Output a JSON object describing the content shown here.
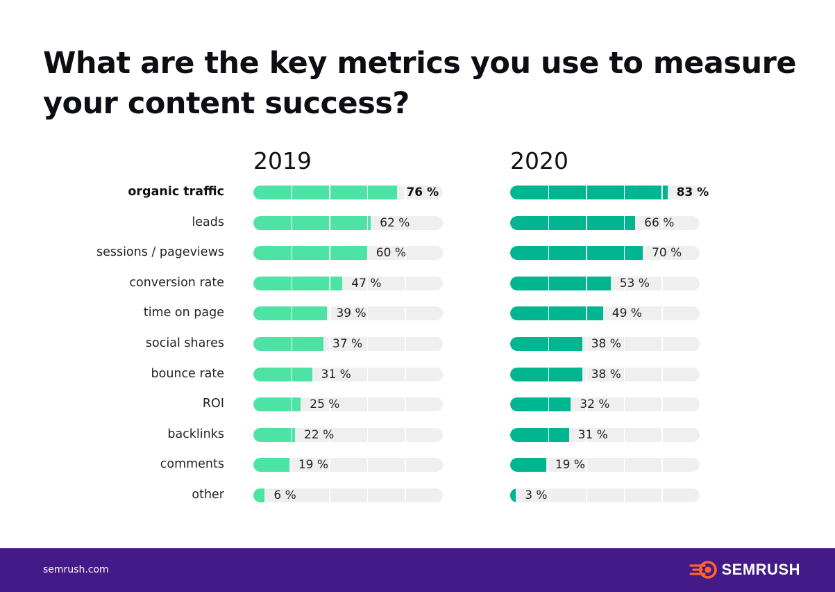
{
  "title": "What are the key metrics you use to measure your content success?",
  "chart_data": {
    "type": "bar",
    "orientation": "horizontal",
    "title": "What are the key metrics you use to measure your content success?",
    "xlim": [
      0,
      100
    ],
    "categories": [
      "organic traffic",
      "leads",
      "sessions / pageviews",
      "conversion rate",
      "time on page",
      "social shares",
      "bounce rate",
      "ROI",
      "backlinks",
      "comments",
      "other"
    ],
    "series": [
      {
        "name": "2019",
        "color": "#4ce3a5",
        "values": [
          76,
          62,
          60,
          47,
          39,
          37,
          31,
          25,
          22,
          19,
          6
        ],
        "labels": [
          "76 %",
          "62 %",
          "60 %",
          "47 %",
          "39 %",
          "37 %",
          "31 %",
          "25 %",
          "22 %",
          "19 %",
          "6 %"
        ]
      },
      {
        "name": "2020",
        "color": "#00b690",
        "values": [
          83,
          66,
          70,
          53,
          49,
          38,
          38,
          32,
          31,
          19,
          3
        ],
        "labels": [
          "83 %",
          "66 %",
          "70 %",
          "53 %",
          "49 %",
          "38 %",
          "38 %",
          "32 %",
          "31 %",
          "19 %",
          "3 %"
        ]
      }
    ]
  },
  "footer": {
    "site": "semrush.com",
    "brand": "SEMRUSH",
    "brand_icon": "semrush-fire-icon",
    "background": "#431a87",
    "brand_color": "#ff642d"
  }
}
